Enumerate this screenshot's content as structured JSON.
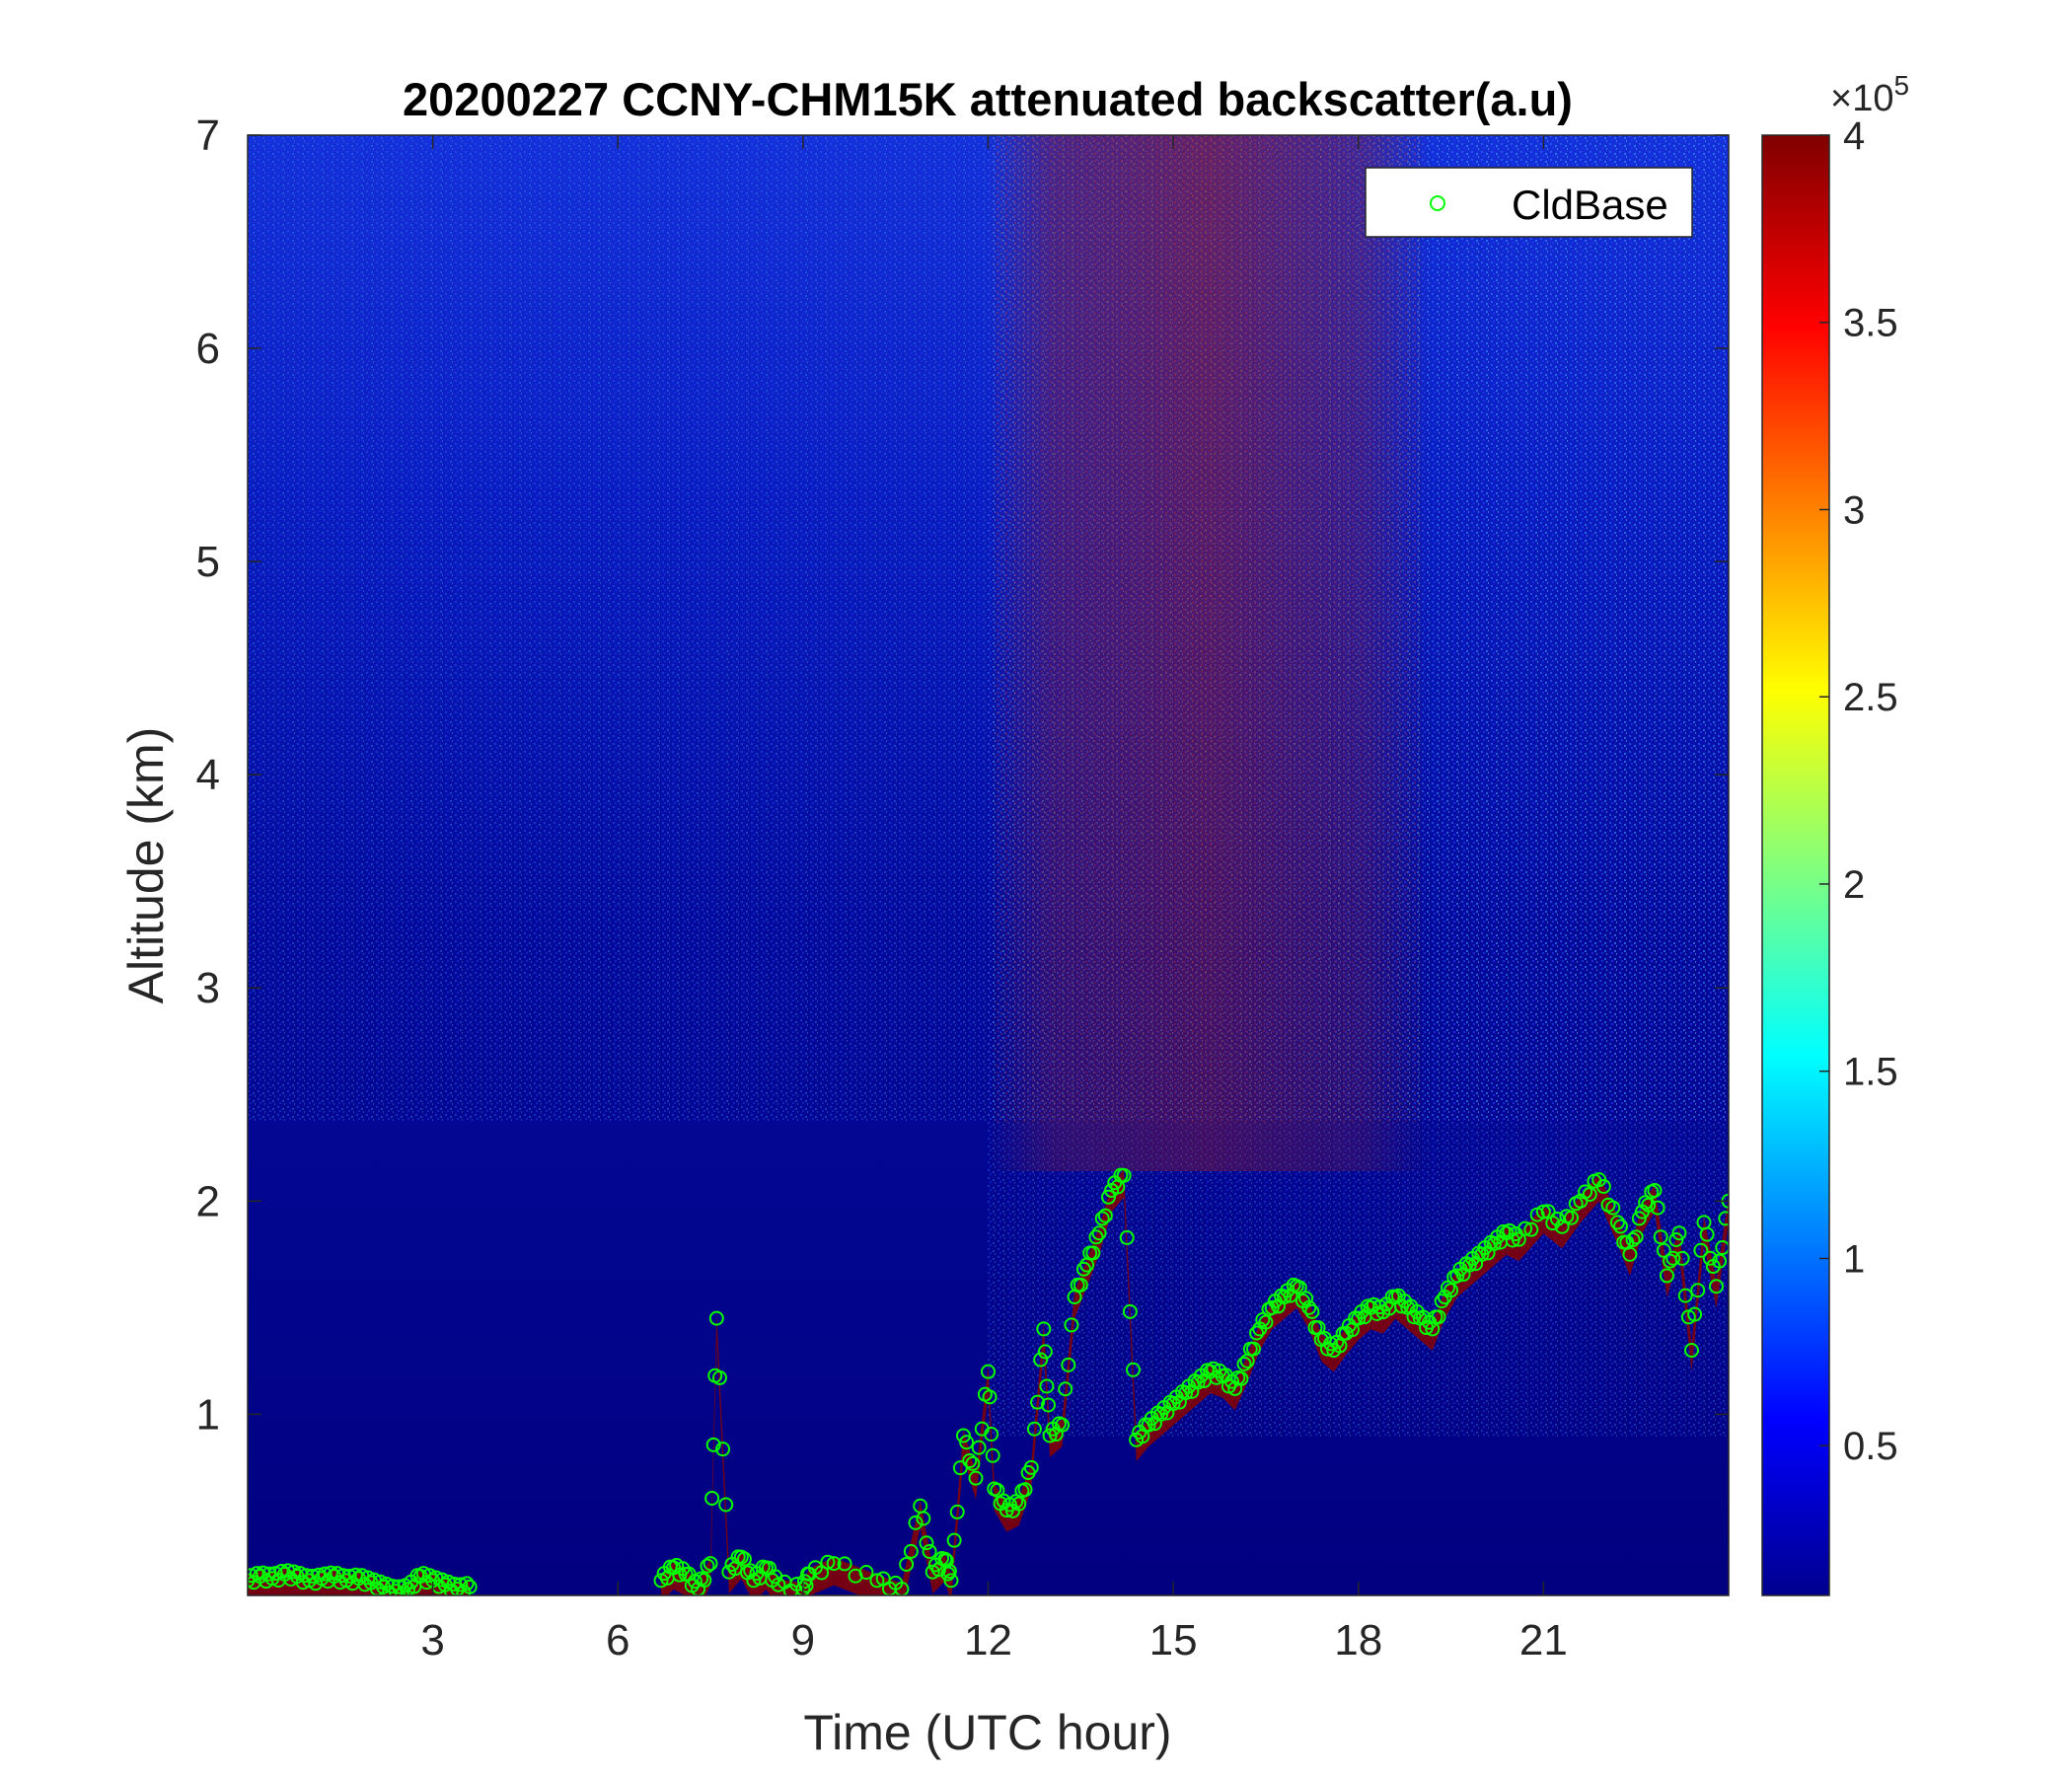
{
  "chart_data": {
    "type": "heatmap",
    "title": "20200227 CCNY-CHM15K attenuated backscatter(a.u)",
    "xlabel": "Time (UTC hour)",
    "ylabel": "Altitude (km)",
    "xlim": [
      0,
      24
    ],
    "ylim": [
      0.15,
      7
    ],
    "xticks": [
      3,
      6,
      9,
      12,
      15,
      18,
      21
    ],
    "yticks": [
      1,
      2,
      3,
      4,
      5,
      6,
      7
    ],
    "colorbar": {
      "colormap": "jet",
      "clim": [
        0.1,
        4
      ],
      "ticks": [
        0.5,
        1,
        1.5,
        2,
        2.5,
        3,
        3.5,
        4
      ],
      "exponent_label": "×10",
      "exponent": "5"
    },
    "legend": {
      "location": "top-right",
      "entries": [
        "CldBase"
      ]
    },
    "series": [
      {
        "name": "CldBase",
        "marker": "circle",
        "color": "#00ff00",
        "points": [
          [
            0.0,
            0.22
          ],
          [
            0.2,
            0.24
          ],
          [
            0.4,
            0.23
          ],
          [
            0.6,
            0.25
          ],
          [
            0.8,
            0.24
          ],
          [
            1.0,
            0.22
          ],
          [
            1.2,
            0.23
          ],
          [
            1.4,
            0.24
          ],
          [
            1.6,
            0.22
          ],
          [
            1.8,
            0.23
          ],
          [
            2.0,
            0.21
          ],
          [
            2.2,
            0.19
          ],
          [
            2.4,
            0.17
          ],
          [
            2.6,
            0.18
          ],
          [
            2.8,
            0.24
          ],
          [
            3.0,
            0.22
          ],
          [
            3.2,
            0.2
          ],
          [
            3.4,
            0.18
          ],
          [
            3.6,
            0.19
          ],
          [
            6.7,
            0.22
          ],
          [
            6.9,
            0.28
          ],
          [
            7.1,
            0.25
          ],
          [
            7.3,
            0.18
          ],
          [
            7.5,
            0.3
          ],
          [
            7.6,
            1.45
          ],
          [
            7.8,
            0.26
          ],
          [
            8.0,
            0.33
          ],
          [
            8.2,
            0.22
          ],
          [
            8.4,
            0.28
          ],
          [
            8.6,
            0.2
          ],
          [
            9.0,
            0.18
          ],
          [
            9.1,
            0.25
          ],
          [
            9.5,
            0.3
          ],
          [
            10.2,
            0.22
          ],
          [
            10.6,
            0.18
          ],
          [
            10.9,
            0.57
          ],
          [
            11.1,
            0.26
          ],
          [
            11.3,
            0.32
          ],
          [
            11.4,
            0.22
          ],
          [
            11.6,
            0.9
          ],
          [
            11.8,
            0.7
          ],
          [
            12.0,
            1.2
          ],
          [
            12.1,
            0.65
          ],
          [
            12.3,
            0.55
          ],
          [
            12.5,
            0.58
          ],
          [
            12.7,
            0.75
          ],
          [
            12.9,
            1.4
          ],
          [
            13.0,
            0.9
          ],
          [
            13.2,
            0.95
          ],
          [
            13.4,
            1.55
          ],
          [
            13.6,
            1.7
          ],
          [
            13.8,
            1.85
          ],
          [
            14.0,
            2.05
          ],
          [
            14.2,
            2.12
          ],
          [
            14.4,
            0.88
          ],
          [
            14.6,
            0.95
          ],
          [
            14.8,
            1.0
          ],
          [
            15.0,
            1.05
          ],
          [
            15.2,
            1.1
          ],
          [
            15.4,
            1.15
          ],
          [
            15.6,
            1.2
          ],
          [
            15.8,
            1.18
          ],
          [
            16.0,
            1.12
          ],
          [
            16.2,
            1.25
          ],
          [
            16.4,
            1.4
          ],
          [
            16.6,
            1.5
          ],
          [
            16.8,
            1.55
          ],
          [
            17.0,
            1.6
          ],
          [
            17.2,
            1.5
          ],
          [
            17.4,
            1.35
          ],
          [
            17.6,
            1.3
          ],
          [
            17.8,
            1.38
          ],
          [
            18.0,
            1.45
          ],
          [
            18.2,
            1.5
          ],
          [
            18.4,
            1.48
          ],
          [
            18.6,
            1.55
          ],
          [
            18.8,
            1.5
          ],
          [
            19.0,
            1.45
          ],
          [
            19.2,
            1.4
          ],
          [
            19.4,
            1.55
          ],
          [
            19.6,
            1.65
          ],
          [
            19.8,
            1.7
          ],
          [
            20.0,
            1.75
          ],
          [
            20.2,
            1.8
          ],
          [
            20.4,
            1.85
          ],
          [
            20.6,
            1.82
          ],
          [
            21.0,
            1.95
          ],
          [
            21.3,
            1.88
          ],
          [
            21.6,
            2.0
          ],
          [
            21.9,
            2.1
          ],
          [
            22.2,
            1.9
          ],
          [
            22.4,
            1.75
          ],
          [
            22.6,
            1.95
          ],
          [
            22.8,
            2.05
          ],
          [
            23.0,
            1.65
          ],
          [
            23.2,
            1.85
          ],
          [
            23.4,
            1.3
          ],
          [
            23.6,
            1.9
          ],
          [
            23.8,
            1.6
          ],
          [
            24.0,
            2.0
          ]
        ]
      }
    ]
  }
}
